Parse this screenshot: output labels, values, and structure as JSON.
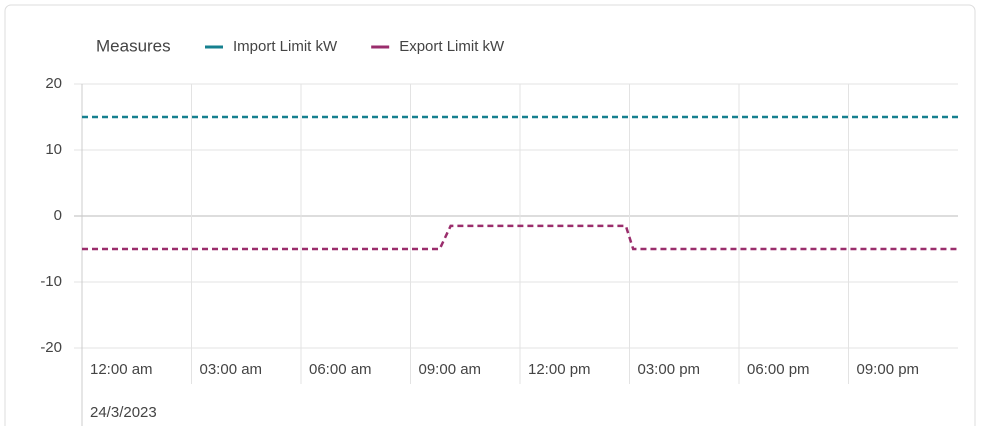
{
  "chart_data": {
    "type": "line",
    "legend_title": "Measures",
    "x": [
      0,
      9.8,
      10.1,
      14.9,
      15.1,
      24
    ],
    "series": [
      {
        "name": "Import Limit kW",
        "color": "#16808f",
        "values": [
          15,
          15,
          15,
          15,
          15,
          15
        ]
      },
      {
        "name": "Export Limit kW",
        "color": "#9a2d6c",
        "values": [
          -5,
          -5,
          -1.5,
          -1.5,
          -5,
          -5
        ]
      }
    ],
    "xlim": [
      0,
      24
    ],
    "xticks": [
      {
        "value": 0,
        "label": "12:00 am"
      },
      {
        "value": 3,
        "label": "03:00 am"
      },
      {
        "value": 6,
        "label": "06:00 am"
      },
      {
        "value": 9,
        "label": "09:00 am"
      },
      {
        "value": 12,
        "label": "12:00 pm"
      },
      {
        "value": 15,
        "label": "03:00 pm"
      },
      {
        "value": 18,
        "label": "06:00 pm"
      },
      {
        "value": 21,
        "label": "09:00 pm"
      }
    ],
    "date_label": "24/3/2023",
    "ylim": [
      -20,
      20
    ],
    "yticks": [
      -20,
      -10,
      0,
      10,
      20
    ],
    "grid": true,
    "dashed": true,
    "legend_position": "top"
  }
}
